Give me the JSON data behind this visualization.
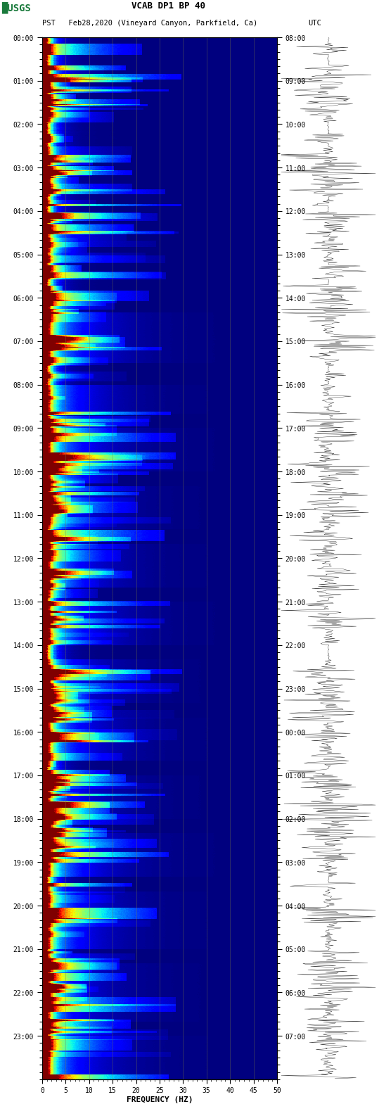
{
  "title_line1": "VCAB DP1 BP 40",
  "title_line2_left": "PST   Feb28,2020 (Vineyard Canyon, Parkfield, Ca)",
  "title_line2_right": "UTC",
  "xlabel": "FREQUENCY (HZ)",
  "freq_min": 0,
  "freq_max": 50,
  "freq_ticks": [
    0,
    5,
    10,
    15,
    20,
    25,
    30,
    35,
    40,
    45,
    50
  ],
  "time_left_labels": [
    "00:00",
    "01:00",
    "02:00",
    "03:00",
    "04:00",
    "05:00",
    "06:00",
    "07:00",
    "08:00",
    "09:00",
    "10:00",
    "11:00",
    "12:00",
    "13:00",
    "14:00",
    "15:00",
    "16:00",
    "17:00",
    "18:00",
    "19:00",
    "20:00",
    "21:00",
    "22:00",
    "23:00"
  ],
  "time_right_labels": [
    "08:00",
    "09:00",
    "10:00",
    "11:00",
    "12:00",
    "13:00",
    "14:00",
    "15:00",
    "16:00",
    "17:00",
    "18:00",
    "19:00",
    "20:00",
    "21:00",
    "22:00",
    "23:00",
    "00:00",
    "01:00",
    "02:00",
    "03:00",
    "04:00",
    "05:00",
    "06:00",
    "07:00"
  ],
  "background_color": "#ffffff",
  "spectrogram_cmap": "jet",
  "n_time_bins": 1440,
  "n_freq_bins": 250,
  "usgs_logo_color": "#1a7a3c",
  "font_color": "#000000",
  "grid_color": "#808040",
  "grid_alpha": 0.5
}
